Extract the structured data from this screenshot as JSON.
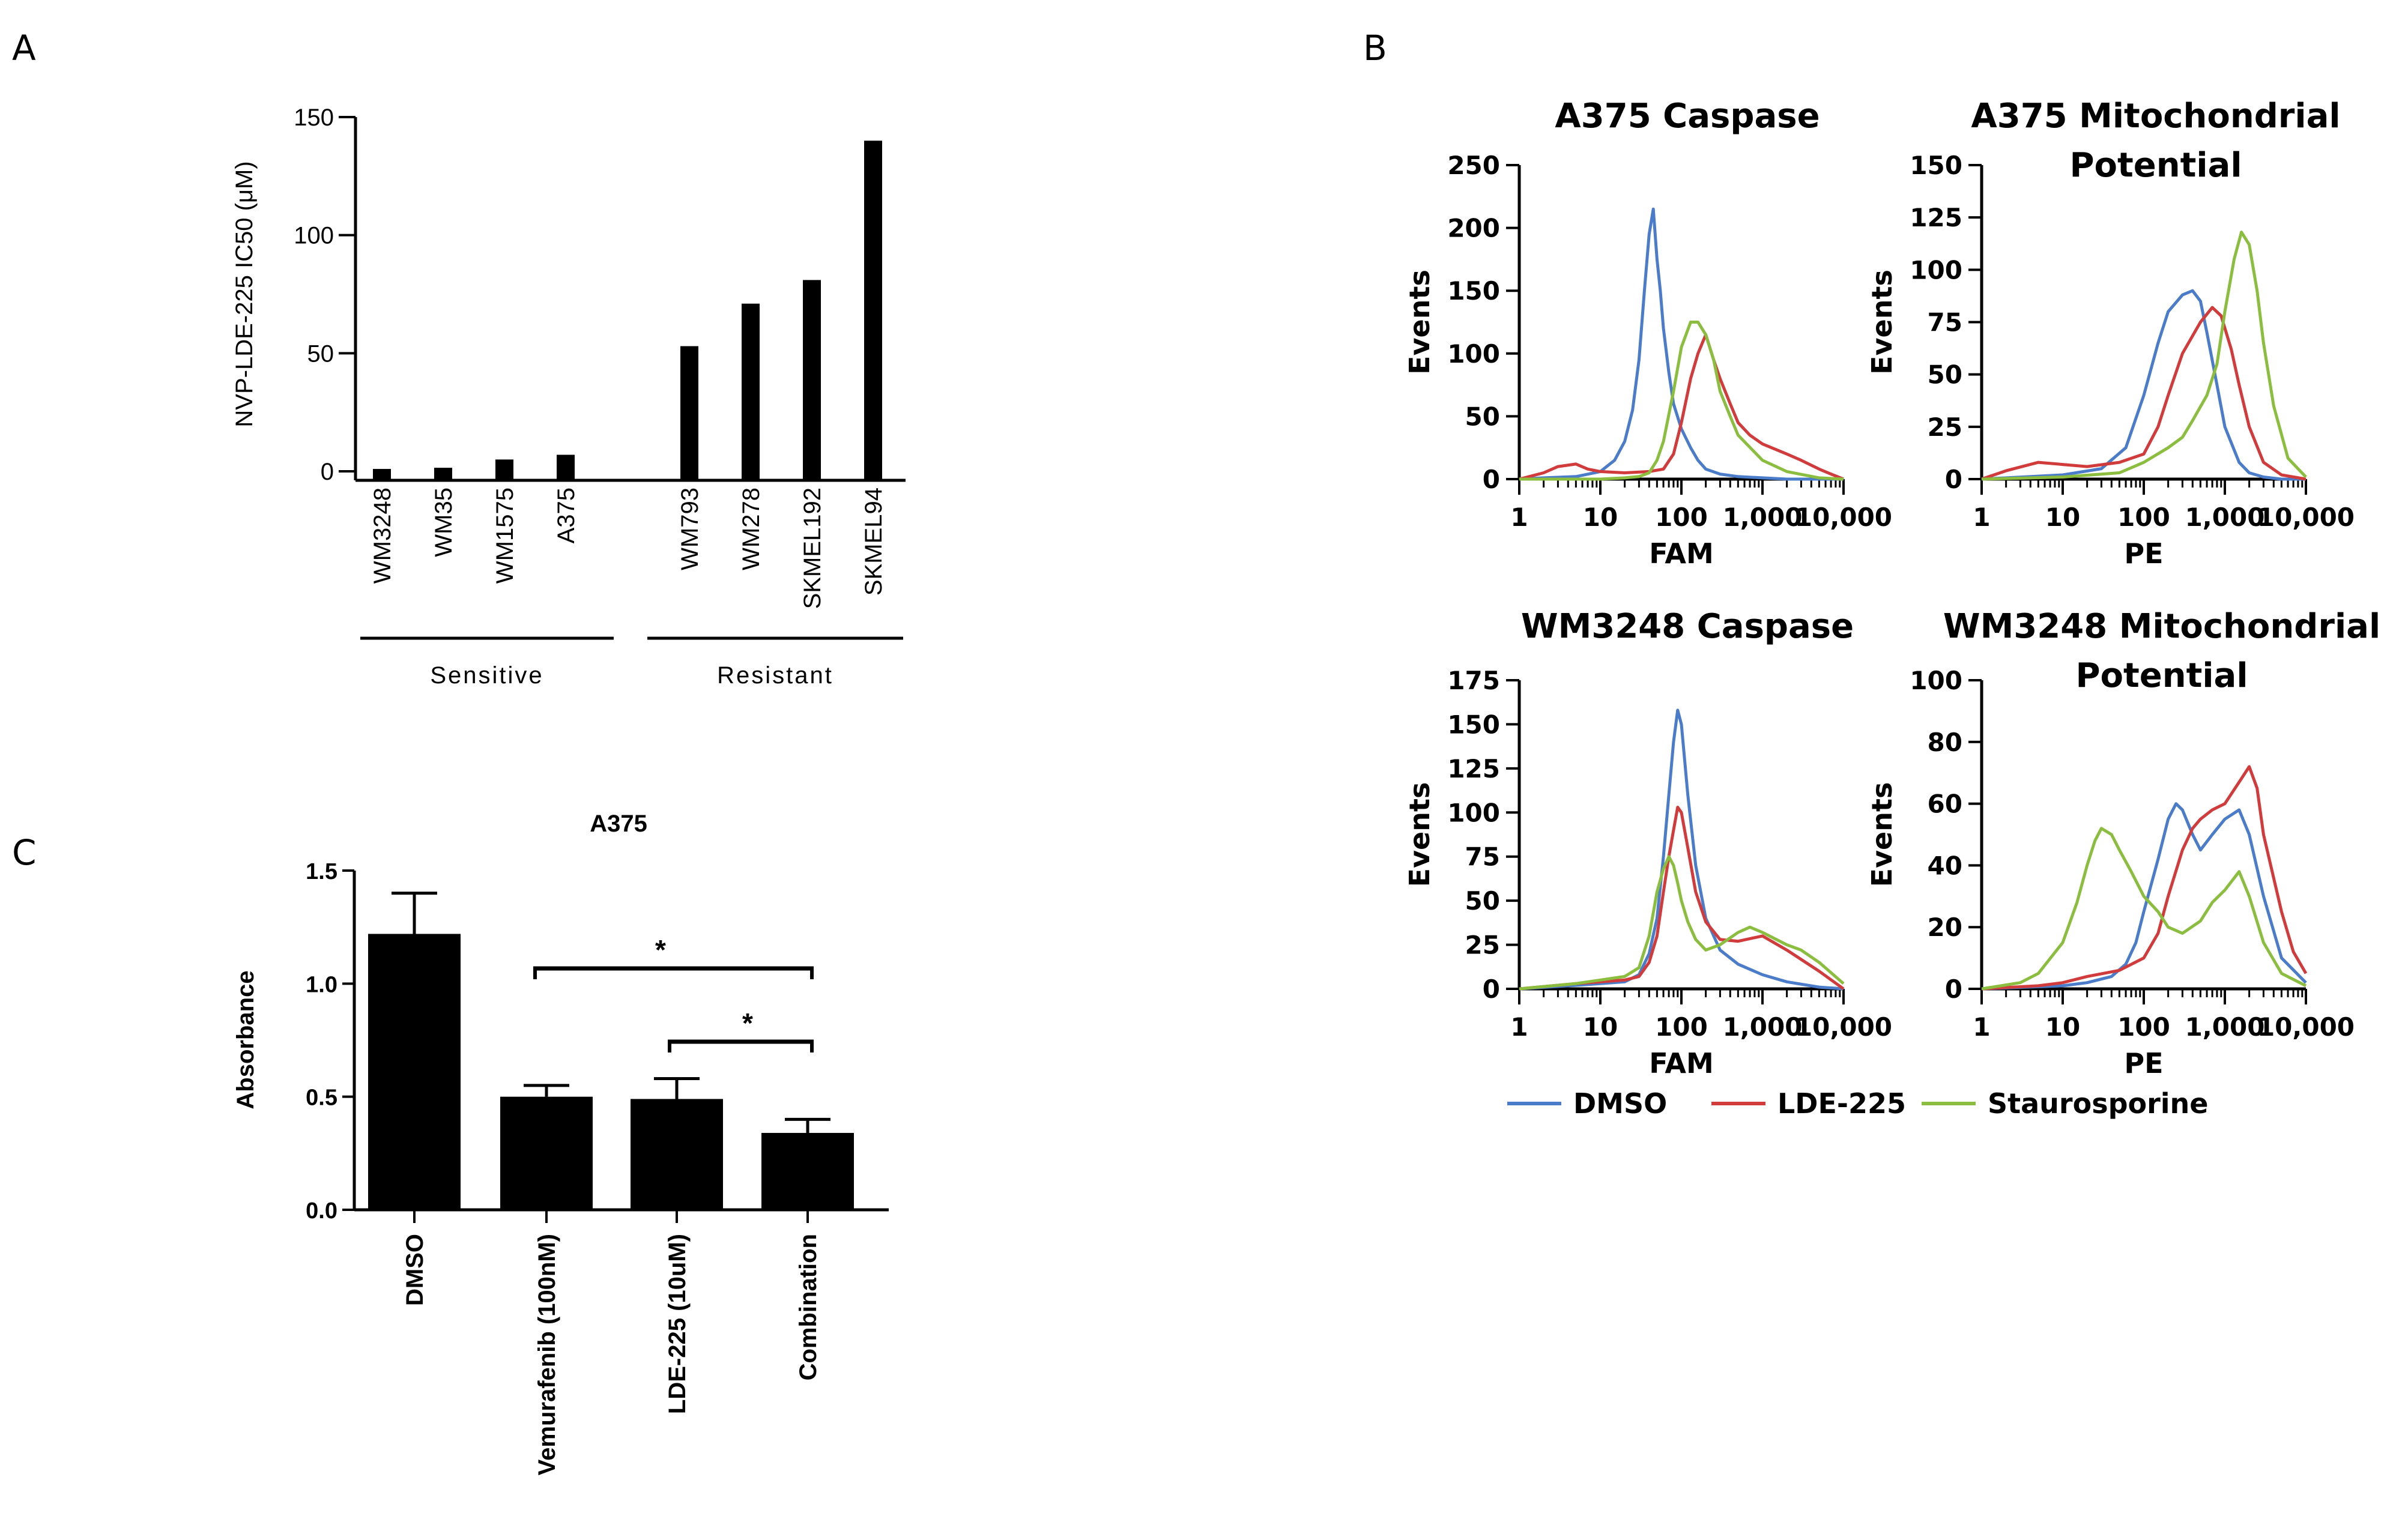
{
  "panels": {
    "a": "A",
    "b": "B",
    "c": "C"
  },
  "colors": {
    "dmso": "#4a7cc9",
    "lde225": "#d13b3b",
    "staurosporine": "#8bbd3f",
    "bar": "#000000"
  },
  "chart_data": [
    {
      "id": "A",
      "type": "bar",
      "title": "",
      "ylabel": "NVP-LDE-225 IC50 (μM)",
      "ylim": [
        0,
        150
      ],
      "yticks": [
        0,
        50,
        100,
        150
      ],
      "categories": [
        "WM3248",
        "WM35",
        "WM1575",
        "A375",
        "WM793",
        "WM278",
        "SKMEL192",
        "SKMEL94"
      ],
      "values": [
        1,
        1.5,
        5,
        7,
        53,
        71,
        81,
        140
      ],
      "groups": [
        {
          "label": "Sensitive",
          "members": [
            "WM3248",
            "WM35",
            "WM1575",
            "A375"
          ]
        },
        {
          "label": "Resistant",
          "members": [
            "WM793",
            "WM278",
            "SKMEL192",
            "SKMEL94"
          ]
        }
      ]
    },
    {
      "id": "B1",
      "type": "line",
      "title": "A375 Caspase",
      "xlabel": "FAM",
      "ylabel": "Events",
      "xscale": "log",
      "xlim": [
        1,
        10000
      ],
      "xticks": [
        "1",
        "10",
        "100",
        "1,000",
        "10,000"
      ],
      "ylim": [
        0,
        250
      ],
      "yticks": [
        0,
        50,
        100,
        150,
        200,
        250
      ],
      "series": [
        {
          "name": "DMSO",
          "x": [
            1,
            2,
            5,
            10,
            15,
            20,
            25,
            30,
            35,
            40,
            45,
            50,
            55,
            60,
            70,
            80,
            100,
            130,
            160,
            200,
            300,
            500,
            1000,
            2000,
            5000,
            10000
          ],
          "y": [
            0,
            1,
            2,
            6,
            15,
            30,
            55,
            95,
            150,
            195,
            215,
            175,
            150,
            120,
            85,
            60,
            40,
            25,
            15,
            8,
            4,
            2,
            1,
            0,
            0,
            0
          ]
        },
        {
          "name": "LDE-225",
          "x": [
            1,
            2,
            3,
            5,
            7,
            10,
            20,
            40,
            60,
            80,
            100,
            130,
            160,
            200,
            250,
            300,
            400,
            500,
            700,
            1000,
            2000,
            3000,
            5000,
            7000,
            10000
          ],
          "y": [
            0,
            5,
            10,
            12,
            8,
            6,
            5,
            6,
            8,
            20,
            45,
            80,
            100,
            115,
            95,
            80,
            60,
            45,
            35,
            28,
            20,
            15,
            8,
            4,
            0
          ]
        },
        {
          "name": "Staurosporine",
          "x": [
            1,
            10,
            20,
            30,
            40,
            50,
            60,
            80,
            100,
            130,
            160,
            200,
            250,
            300,
            400,
            500,
            1000,
            2000,
            5000,
            10000
          ],
          "y": [
            0,
            0,
            1,
            2,
            5,
            15,
            30,
            70,
            105,
            125,
            125,
            115,
            95,
            70,
            50,
            35,
            15,
            6,
            1,
            0
          ]
        }
      ]
    },
    {
      "id": "B2",
      "type": "line",
      "title": "A375 Mitochondrial Potential",
      "xlabel": "PE",
      "ylabel": "Events",
      "xscale": "log",
      "xlim": [
        1,
        10000
      ],
      "xticks": [
        "1",
        "10",
        "100",
        "1,000",
        "10,000"
      ],
      "ylim": [
        0,
        150
      ],
      "yticks": [
        0,
        25,
        50,
        75,
        100,
        125,
        150
      ],
      "series": [
        {
          "name": "DMSO",
          "x": [
            1,
            10,
            30,
            60,
            100,
            150,
            200,
            300,
            400,
            500,
            600,
            800,
            1000,
            1500,
            2000,
            3000,
            5000,
            10000
          ],
          "y": [
            0,
            2,
            5,
            15,
            40,
            65,
            80,
            88,
            90,
            85,
            70,
            45,
            25,
            8,
            3,
            1,
            0,
            0
          ]
        },
        {
          "name": "LDE-225",
          "x": [
            1,
            2,
            5,
            10,
            20,
            50,
            100,
            150,
            200,
            300,
            500,
            700,
            900,
            1200,
            1500,
            2000,
            3000,
            5000,
            10000
          ],
          "y": [
            0,
            4,
            8,
            7,
            6,
            8,
            12,
            25,
            40,
            60,
            75,
            82,
            78,
            62,
            45,
            25,
            8,
            2,
            0
          ]
        },
        {
          "name": "Staurosporine",
          "x": [
            1,
            10,
            50,
            100,
            200,
            300,
            400,
            600,
            800,
            1000,
            1300,
            1600,
            2000,
            2500,
            3000,
            4000,
            6000,
            10000
          ],
          "y": [
            0,
            1,
            3,
            8,
            15,
            20,
            28,
            40,
            55,
            80,
            105,
            118,
            112,
            90,
            65,
            35,
            10,
            1
          ]
        }
      ]
    },
    {
      "id": "B3",
      "type": "line",
      "title": "WM3248 Caspase",
      "xlabel": "FAM",
      "ylabel": "Events",
      "xscale": "log",
      "xlim": [
        1,
        10000
      ],
      "xticks": [
        "1",
        "10",
        "100",
        "1,000",
        "10,000"
      ],
      "ylim": [
        0,
        175
      ],
      "yticks": [
        0,
        25,
        50,
        75,
        100,
        125,
        150,
        175
      ],
      "series": [
        {
          "name": "DMSO",
          "x": [
            1,
            5,
            10,
            20,
            30,
            40,
            50,
            60,
            70,
            80,
            90,
            100,
            120,
            150,
            200,
            300,
            500,
            1000,
            2000,
            5000,
            10000
          ],
          "y": [
            0,
            2,
            3,
            4,
            8,
            20,
            40,
            75,
            110,
            140,
            158,
            150,
            110,
            70,
            40,
            22,
            14,
            8,
            4,
            1,
            0
          ]
        },
        {
          "name": "LDE-225",
          "x": [
            1,
            5,
            10,
            20,
            30,
            40,
            50,
            60,
            70,
            80,
            90,
            100,
            120,
            150,
            200,
            300,
            500,
            1000,
            2000,
            5000,
            10000
          ],
          "y": [
            0,
            3,
            4,
            5,
            7,
            15,
            30,
            55,
            75,
            90,
            103,
            100,
            80,
            55,
            38,
            28,
            27,
            30,
            22,
            10,
            0
          ]
        },
        {
          "name": "Staurosporine",
          "x": [
            1,
            5,
            10,
            20,
            30,
            40,
            50,
            60,
            70,
            80,
            90,
            100,
            120,
            150,
            200,
            300,
            500,
            700,
            1000,
            2000,
            3000,
            5000,
            10000
          ],
          "y": [
            0,
            3,
            5,
            7,
            12,
            30,
            55,
            68,
            75,
            70,
            60,
            50,
            38,
            28,
            22,
            25,
            32,
            35,
            32,
            25,
            22,
            15,
            3
          ]
        }
      ]
    },
    {
      "id": "B4",
      "type": "line",
      "title": "WM3248 Mitochondrial Potential",
      "xlabel": "PE",
      "ylabel": "Events",
      "xscale": "log",
      "xlim": [
        1,
        10000
      ],
      "xticks": [
        "1",
        "10",
        "100",
        "1,000",
        "10,000"
      ],
      "ylim": [
        0,
        100
      ],
      "yticks": [
        0,
        20,
        40,
        60,
        80,
        100
      ],
      "series": [
        {
          "name": "DMSO",
          "x": [
            1,
            10,
            20,
            40,
            60,
            80,
            100,
            150,
            200,
            250,
            300,
            400,
            500,
            700,
            1000,
            1500,
            2000,
            3000,
            5000,
            10000
          ],
          "y": [
            0,
            1,
            2,
            4,
            8,
            15,
            25,
            42,
            55,
            60,
            58,
            50,
            45,
            50,
            55,
            58,
            50,
            30,
            10,
            2
          ]
        },
        {
          "name": "LDE-225",
          "x": [
            1,
            5,
            10,
            20,
            50,
            100,
            150,
            200,
            300,
            400,
            500,
            700,
            1000,
            1500,
            2000,
            2500,
            3000,
            5000,
            7000,
            10000
          ],
          "y": [
            0,
            1,
            2,
            4,
            6,
            10,
            18,
            30,
            45,
            52,
            55,
            58,
            60,
            67,
            72,
            65,
            50,
            25,
            12,
            5
          ]
        },
        {
          "name": "Staurosporine",
          "x": [
            1,
            3,
            5,
            10,
            15,
            20,
            25,
            30,
            40,
            50,
            70,
            100,
            150,
            200,
            300,
            500,
            700,
            1000,
            1500,
            2000,
            3000,
            5000,
            10000
          ],
          "y": [
            0,
            2,
            5,
            15,
            28,
            40,
            48,
            52,
            50,
            45,
            38,
            30,
            25,
            20,
            18,
            22,
            28,
            32,
            38,
            30,
            15,
            5,
            1
          ]
        }
      ]
    },
    {
      "id": "C",
      "type": "bar",
      "title": "A375",
      "ylabel": "Absorbance",
      "ylim": [
        0,
        1.5
      ],
      "yticks": [
        "0.0",
        "0.5",
        "1.0",
        "1.5"
      ],
      "categories": [
        "DMSO",
        "Vemurafenib (100nM)",
        "LDE-225 (10uM)",
        "Combination"
      ],
      "values": [
        1.22,
        0.5,
        0.49,
        0.34
      ],
      "errors": [
        0.18,
        0.05,
        0.09,
        0.06
      ],
      "significance": [
        {
          "from": "Vemurafenib (100nM)",
          "to": "Combination",
          "label": "*"
        },
        {
          "from": "LDE-225 (10uM)",
          "to": "Combination",
          "label": "*"
        }
      ]
    }
  ]
}
